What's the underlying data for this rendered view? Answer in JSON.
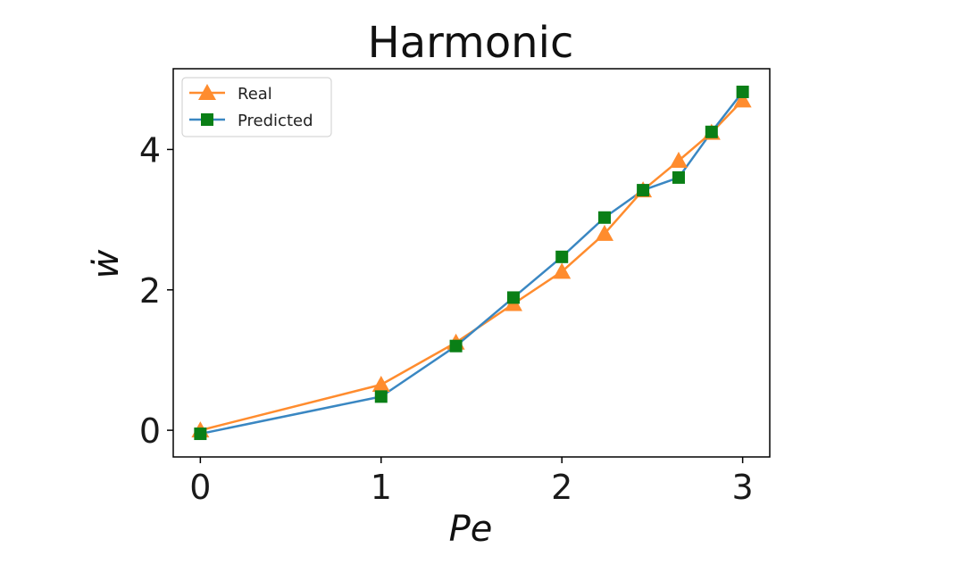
{
  "chart_data": {
    "type": "line",
    "title": "Harmonic",
    "xlabel": "Pe",
    "ylabel": "ẇ",
    "xlim": [
      -0.15,
      3.15
    ],
    "ylim": [
      -0.38,
      5.15
    ],
    "xticks": [
      0,
      1,
      2,
      3
    ],
    "yticks": [
      0,
      2,
      4
    ],
    "grid": false,
    "legend_position": "top-left",
    "x": [
      0,
      1,
      1.414,
      1.732,
      2,
      2.236,
      2.449,
      2.646,
      2.828,
      3
    ],
    "series": [
      {
        "name": "Real",
        "color": "#ff8c2e",
        "marker": "triangle",
        "values": [
          0.0,
          0.65,
          1.25,
          1.8,
          2.26,
          2.8,
          3.42,
          3.84,
          4.24,
          4.7
        ]
      },
      {
        "name": "Predicted",
        "color": "#3a87c2",
        "marker_color": "#0a7f16",
        "marker": "square",
        "values": [
          -0.05,
          0.48,
          1.2,
          1.89,
          2.47,
          3.03,
          3.42,
          3.6,
          4.25,
          4.82
        ]
      }
    ]
  }
}
